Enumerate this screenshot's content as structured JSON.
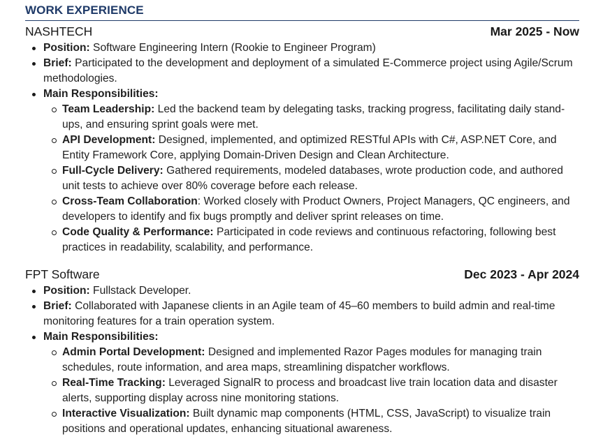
{
  "section": {
    "title": "WORK EXPERIENCE"
  },
  "jobs": [
    {
      "company": "NASHTECH",
      "dates": "Mar 2025 - Now",
      "position_label": "Position:",
      "position": "Software Engineering Intern (Rookie to Engineer Program)",
      "brief_label": "Brief:",
      "brief": "Participated to the development and deployment of a simulated E-Commerce project using Agile/Scrum methodologies.",
      "resp_label": "Main Responsibilities:",
      "responsibilities": [
        {
          "label": "Team Leadership:",
          "text": "Led the backend team by delegating tasks, tracking progress, facilitating daily stand-ups, and ensuring sprint goals were met."
        },
        {
          "label": "API Development:",
          "text": "Designed, implemented, and optimized RESTful APIs with C#, ASP.NET Core, and Entity Framework Core, applying Domain-Driven Design and Clean Architecture."
        },
        {
          "label": "Full-Cycle Delivery:",
          "text": "Gathered requirements, modeled databases, wrote production code, and authored unit tests to achieve over 80% coverage before each release."
        },
        {
          "label": "Cross-Team Collaboration",
          "text": ": Worked closely with Product Owners, Project Managers, QC engineers, and developers to identify and fix bugs promptly and deliver sprint releases on time."
        },
        {
          "label": "Code Quality & Performance:",
          "text": "Participated in code reviews and continuous refactoring, following best practices in readability, scalability, and performance."
        }
      ]
    },
    {
      "company": "FPT Software",
      "dates": "Dec 2023 - Apr 2024",
      "position_label": "Position:",
      "position": "Fullstack Developer.",
      "brief_label": "Brief:",
      "brief": "Collaborated with Japanese clients in an Agile team of 45–60 members to build admin and real-time monitoring features for a train operation system.",
      "resp_label": "Main Responsibilities:",
      "responsibilities": [
        {
          "label": "Admin Portal Development:",
          "text": "Designed and implemented Razor Pages modules for managing train schedules, route information, and area maps, streamlining dispatcher workflows."
        },
        {
          "label": "Real-Time Tracking:",
          "text": "Leveraged SignalR to process and broadcast live train location data and disaster alerts, supporting display across nine monitoring stations."
        },
        {
          "label": "Interactive Visualization:",
          "text": "Built dynamic map components (HTML, CSS, JavaScript) to visualize train positions and operational updates, enhancing situational awareness."
        }
      ]
    }
  ]
}
